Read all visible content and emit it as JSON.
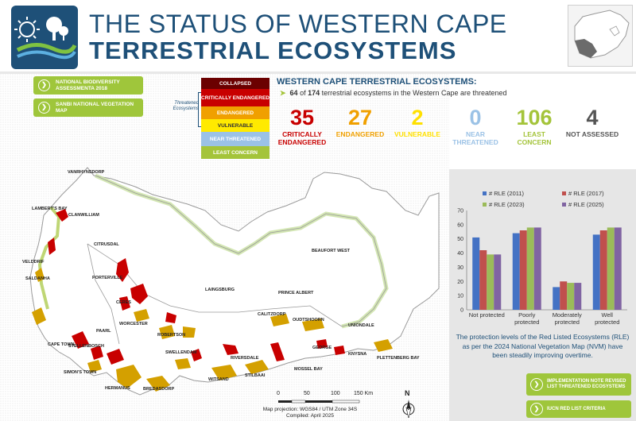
{
  "header": {
    "title_line1": "THE STATUS OF WESTERN CAPE",
    "title_line2": "TERRESTRIAL ECOSYSTEMS"
  },
  "left_buttons": [
    {
      "label": "NATIONAL BIODIVERSITY ASSESSMENTA 2018"
    },
    {
      "label": "SANBI NATIONAL VEGETATION MAP"
    }
  ],
  "legend": {
    "threatened_label": "Threatened Ecosystems",
    "items": [
      {
        "label": "COLLAPSED",
        "color": "#6b0000"
      },
      {
        "label": "CRITICALLY ENDANGERED",
        "color": "#c80000"
      },
      {
        "label": "ENDANGERED",
        "color": "#f0a000"
      },
      {
        "label": "VULNERABLE",
        "color": "#ffea00"
      },
      {
        "label": "NEAR THREATENED",
        "color": "#9bc2e6"
      },
      {
        "label": "LEAST CONCERN",
        "color": "#a4c43a"
      }
    ]
  },
  "stats": {
    "title": "WESTERN CAPE TERRESTRIAL ECOSYSTEMS:",
    "threatened_count": "64",
    "total_count": "174",
    "subtitle_mid": " of ",
    "subtitle_tail": " terrestrial ecosystems in the Western Cape are threatened",
    "items": [
      {
        "value": "35",
        "label": "CRITICALLY ENDANGERED",
        "color": "#c80000"
      },
      {
        "value": "27",
        "label": "ENDANGERED",
        "color": "#f0a000"
      },
      {
        "value": "2",
        "label": "VULNERABLE",
        "color": "#ffe000"
      },
      {
        "value": "0",
        "label": "NEAR THREATENED",
        "color": "#9bc2e6"
      },
      {
        "value": "106",
        "label": "LEAST CONCERN",
        "color": "#a4c43a"
      },
      {
        "value": "4",
        "label": "NOT ASSESSED",
        "color": "#555555"
      }
    ]
  },
  "map": {
    "towns": [
      "VANRHYNSDORP",
      "LAMBERT'S BAY",
      "CLANWILLIAM",
      "CITRUSDAL",
      "VELDDRIF",
      "SALDANHA",
      "PORTERVILLE",
      "CERES",
      "LAINGSBURG",
      "BEAUFORT WEST",
      "PRINCE ALBERT",
      "CALITZDORP",
      "OUDTSHOORN",
      "UNIONDALE",
      "WORCESTER",
      "PAARL",
      "ROBERTSON",
      "CAPE TOWN",
      "STELLENBOSCH",
      "SWELLENDAM",
      "RIVERSDALE",
      "GEORGE",
      "KNYSNA",
      "PLETTENBERG BAY",
      "MOSSEL BAY",
      "STILBAAI",
      "WITSAND",
      "SIMON'S TOWN",
      "HERMANUS",
      "BREDASDORP"
    ],
    "scale_labels": [
      "0",
      "50",
      "100",
      "150 Km"
    ],
    "north_label": "N",
    "projection": "Map projection: WGS84 / UTM Zone 34S",
    "compiled": "Compiled: April 2025"
  },
  "chart_data": {
    "type": "bar",
    "categories": [
      "Not protected",
      "Poorly protected",
      "Moderately protected",
      "Well protected"
    ],
    "series": [
      {
        "name": "# RLE (2011)",
        "color": "#4472c4",
        "values": [
          51,
          54,
          16,
          53
        ]
      },
      {
        "name": "# RLE (2017)",
        "color": "#c0504d",
        "values": [
          42,
          56,
          20,
          56
        ]
      },
      {
        "name": "# RLE (2023)",
        "color": "#9bbb59",
        "values": [
          39,
          58,
          19,
          58
        ]
      },
      {
        "name": "# RLE (2025)",
        "color": "#8064a2",
        "values": [
          39,
          58,
          19,
          58
        ]
      }
    ],
    "ylim": [
      0,
      70
    ],
    "yticks": [
      0,
      10,
      20,
      30,
      40,
      50,
      60,
      70
    ],
    "grid": false,
    "legend": "top"
  },
  "panel": {
    "caption": "The protection levels of the Red Listed Ecosystems (RLE) as per the 2024 National Vegetation Map (NVM) have been steadily improving overtime."
  },
  "right_buttons": [
    {
      "label": "IMPLEMENTATION NOTE REVISED LIST THREATENED ECOSYSTEMS"
    },
    {
      "label": "IUCN RED LIST CRITERIA"
    }
  ]
}
